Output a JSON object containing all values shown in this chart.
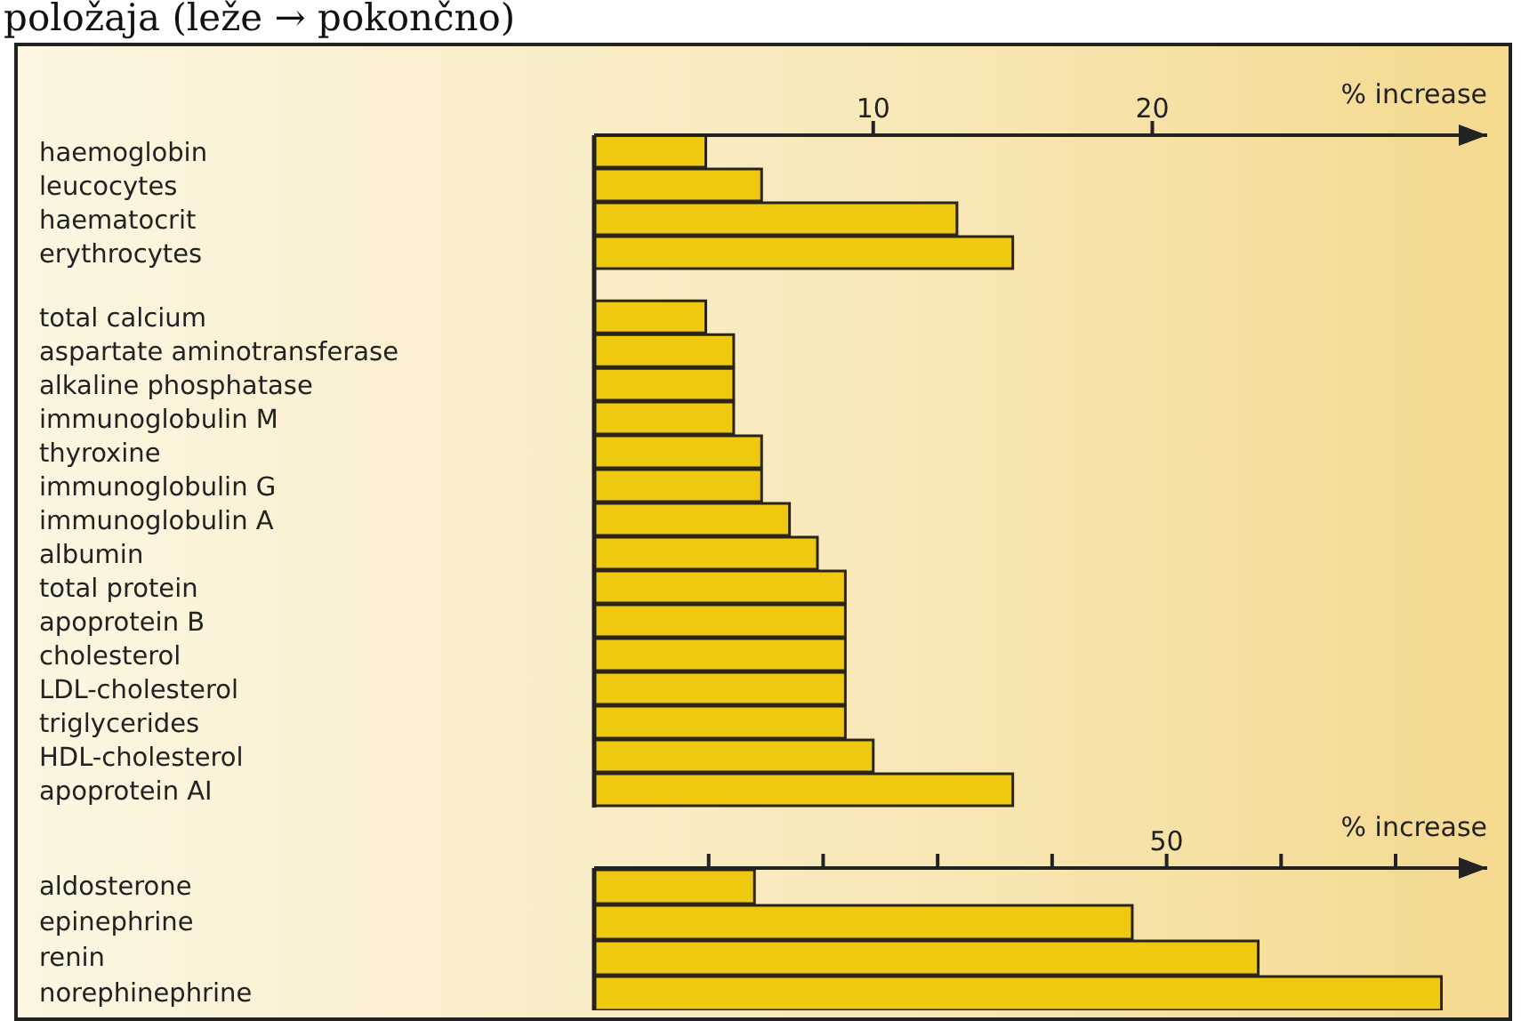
{
  "chart_data": [
    {
      "type": "bar",
      "orientation": "horizontal",
      "title": "položaja (leže → pokončno)",
      "xlabel": "% increase",
      "categories": [
        "haemoglobin",
        "leucocytes",
        "haematocrit",
        "erythrocytes",
        "total calcium",
        "aspartate aminotransferase",
        "alkaline phosphatase",
        "immunoglobulin M",
        "thyroxine",
        "immunoglobulin G",
        "immunoglobulin A",
        "albumin",
        "total protein",
        "apoprotein B",
        "cholesterol",
        "LDL-cholesterol",
        "triglycerides",
        "HDL-cholesterol",
        "apoprotein AI"
      ],
      "values": [
        4,
        6,
        13,
        15,
        4,
        5,
        5,
        5,
        6,
        6,
        7,
        8,
        9,
        9,
        9,
        9,
        9,
        10,
        15
      ],
      "color": "#eec910",
      "xlim": [
        0,
        32
      ],
      "xticks": [
        10,
        20
      ]
    },
    {
      "type": "bar",
      "orientation": "horizontal",
      "xlabel": "% increase",
      "categories": [
        "aldosterone",
        "epinephrine",
        "renin",
        "norephinephrine"
      ],
      "values": [
        14,
        47,
        58,
        74
      ],
      "color": "#eec910",
      "xlim": [
        0,
        78
      ],
      "xticks": [
        {
          "value": 10,
          "label": null
        },
        {
          "value": 20,
          "label": null
        },
        {
          "value": 30,
          "label": null
        },
        {
          "value": 40,
          "label": null
        },
        50,
        {
          "value": 60,
          "label": null
        },
        {
          "value": 70,
          "label": null
        }
      ]
    }
  ]
}
